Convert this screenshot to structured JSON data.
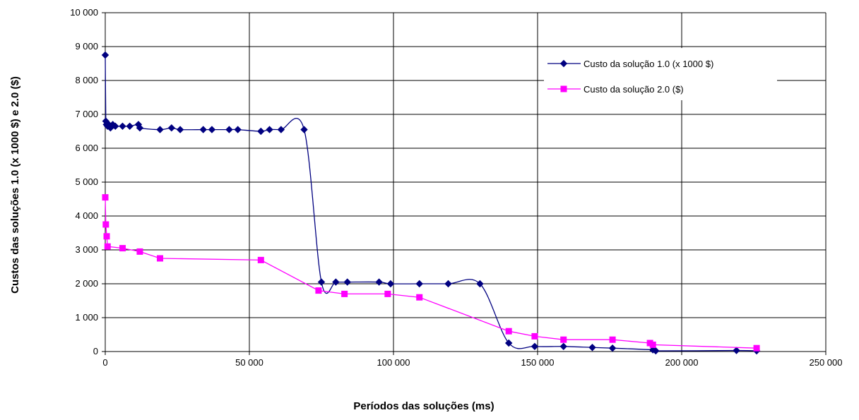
{
  "chart_data": {
    "type": "scatter",
    "title": "",
    "xlabel": "Períodos das soluções (ms)",
    "ylabel": "Custos das soluções 1.0 (x 1000 $) e 2.0 ($)",
    "xlim": [
      0,
      250000
    ],
    "ylim": [
      0,
      10000
    ],
    "x_ticks": [
      0,
      50000,
      100000,
      150000,
      200000,
      250000
    ],
    "y_ticks": [
      0,
      1000,
      2000,
      3000,
      4000,
      5000,
      6000,
      7000,
      8000,
      9000,
      10000
    ],
    "x_tick_labels": [
      "0",
      "50 000",
      "100 000",
      "150 000",
      "200 000",
      "250 000"
    ],
    "y_tick_labels": [
      "0",
      "1 000",
      "2 000",
      "3 000",
      "4 000",
      "5 000",
      "6 000",
      "7 000",
      "8 000",
      "9 000",
      "10 000"
    ],
    "grid": true,
    "legend_position": "top-right",
    "series": [
      {
        "name": "Custo da solução 1.0 (x 1000 $)",
        "color": "#000080",
        "marker": "diamond",
        "smooth": true,
        "x": [
          0,
          200,
          400,
          800,
          1200,
          1800,
          2600,
          3500,
          6000,
          8500,
          11500,
          12000,
          19000,
          23000,
          26000,
          34000,
          37000,
          43000,
          46000,
          54000,
          57000,
          61000,
          69000,
          75000,
          80000,
          84000,
          95000,
          99000,
          109000,
          119000,
          130000,
          140000,
          149000,
          159000,
          169000,
          176000,
          190000,
          191000,
          219000,
          226000
        ],
        "y": [
          8750,
          6800,
          6700,
          6650,
          6700,
          6600,
          6700,
          6650,
          6650,
          6650,
          6700,
          6600,
          6550,
          6600,
          6550,
          6550,
          6550,
          6550,
          6550,
          6500,
          6550,
          6550,
          6550,
          2050,
          2050,
          2050,
          2050,
          2000,
          2000,
          2000,
          2000,
          250,
          150,
          150,
          120,
          100,
          50,
          20,
          30,
          20
        ]
      },
      {
        "name": "Custo da solução 2.0 ($)",
        "color": "#ff00ff",
        "marker": "square",
        "smooth": false,
        "x": [
          0,
          200,
          500,
          800,
          6000,
          12000,
          19000,
          54000,
          74000,
          83000,
          98000,
          109000,
          140000,
          149000,
          159000,
          176000,
          189000,
          190000,
          226000
        ],
        "y": [
          4550,
          3750,
          3400,
          3100,
          3050,
          2950,
          2750,
          2700,
          1800,
          1700,
          1700,
          1600,
          600,
          450,
          350,
          350,
          250,
          200,
          100
        ]
      }
    ]
  }
}
